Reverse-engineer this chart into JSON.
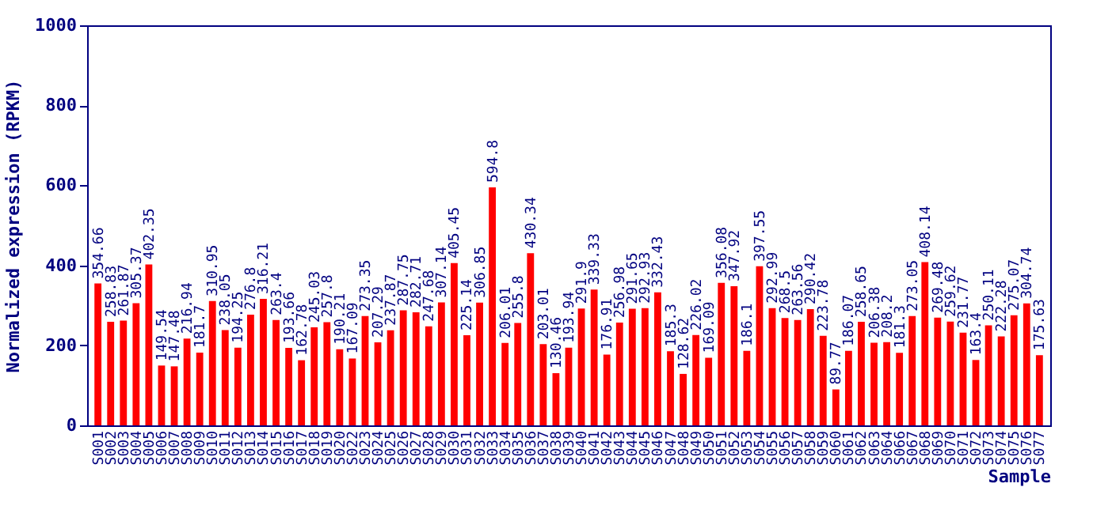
{
  "chart_data": {
    "type": "bar",
    "xlabel": "Sample",
    "ylabel": "Normalized expression (RPKM)",
    "categories": [
      "S001",
      "S002",
      "S003",
      "S004",
      "S005",
      "S006",
      "S007",
      "S008",
      "S009",
      "S010",
      "S011",
      "S012",
      "S013",
      "S014",
      "S015",
      "S016",
      "S017",
      "S018",
      "S019",
      "S020",
      "S022",
      "S023",
      "S024",
      "S025",
      "S026",
      "S027",
      "S028",
      "S029",
      "S030",
      "S031",
      "S032",
      "S033",
      "S034",
      "S035",
      "S036",
      "S037",
      "S038",
      "S039",
      "S040",
      "S041",
      "S042",
      "S043",
      "S044",
      "S045",
      "S046",
      "S047",
      "S048",
      "S049",
      "S050",
      "S051",
      "S052",
      "S053",
      "S054",
      "S055",
      "S056",
      "S057",
      "S058",
      "S059",
      "S060",
      "S061",
      "S062",
      "S063",
      "S064",
      "S066",
      "S067",
      "S068",
      "S069",
      "S070",
      "S071",
      "S072",
      "S073",
      "S074",
      "S075",
      "S076",
      "S077"
    ],
    "values": [
      354.66,
      258.83,
      261.87,
      305.37,
      402.35,
      149.54,
      147.48,
      216.94,
      181.7,
      310.95,
      238.05,
      194.25,
      276.8,
      316.21,
      263.4,
      193.66,
      162.78,
      245.03,
      257.8,
      190.21,
      167.09,
      273.35,
      207.29,
      237.87,
      287.75,
      282.71,
      247.68,
      307.14,
      405.45,
      225.14,
      306.85,
      594.8,
      206.01,
      255.8,
      430.34,
      203.01,
      130.46,
      193.94,
      291.9,
      339.33,
      176.91,
      256.98,
      291.65,
      292.93,
      332.43,
      185.3,
      128.62,
      226.02,
      169.09,
      356.08,
      347.92,
      186.1,
      397.55,
      292.99,
      268.5,
      263.56,
      290.42,
      223.78,
      89.77,
      186.07,
      258.65,
      206.38,
      208.2,
      181.3,
      273.05,
      408.14,
      269.48,
      259.62,
      231.77,
      163.4,
      250.11,
      222.28,
      275.07,
      304.74,
      175.63
    ],
    "color": "#ff0000",
    "ylim": [
      0,
      1000
    ],
    "yticks": [
      0,
      200,
      400,
      600,
      800,
      1000
    ],
    "data_labels": true,
    "grid": false
  }
}
